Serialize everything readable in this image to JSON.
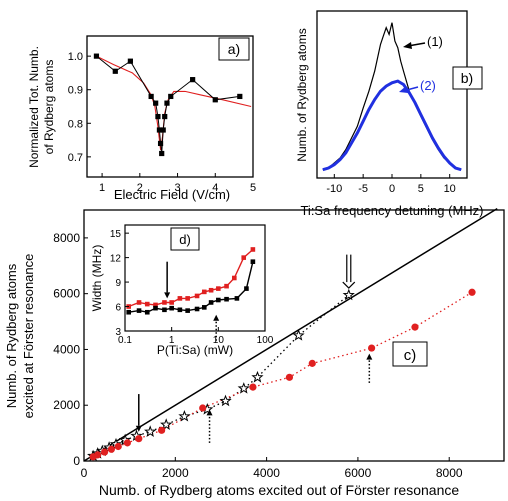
{
  "figure": {
    "panel_letters": {
      "a": "a)",
      "b": "b)",
      "c": "c)",
      "d": "d)"
    }
  },
  "chart_data": [
    {
      "panel": "a)",
      "type": "scatter",
      "xlabel": "Electric Field (V/cm)",
      "ylabel_lines": [
        "Normalized Tot. Numb.",
        "of Rydberg atoms"
      ],
      "xlim": [
        0.6,
        5.0
      ],
      "ylim": [
        0.64,
        1.06
      ],
      "xticks": [
        1,
        2,
        3,
        4,
        5
      ],
      "yticks": [
        0.7,
        0.8,
        0.9,
        1.0
      ],
      "ytick_labels": [
        "0.7",
        "0.8",
        "0.9",
        "1.0"
      ],
      "series": [
        {
          "kind": "points-connected",
          "color": "#000000",
          "x": [
            0.85,
            1.35,
            1.75,
            2.3,
            2.42,
            2.48,
            2.52,
            2.55,
            2.58,
            2.62,
            2.66,
            2.72,
            2.82,
            3.4,
            4.0,
            4.65
          ],
          "y": [
            1.0,
            0.955,
            0.985,
            0.88,
            0.86,
            0.82,
            0.78,
            0.74,
            0.71,
            0.78,
            0.82,
            0.86,
            0.88,
            0.93,
            0.87,
            0.88
          ]
        },
        {
          "kind": "fit-line",
          "color": "#e02020",
          "x": [
            0.85,
            1.3,
            1.8,
            2.1,
            2.3,
            2.4,
            2.48,
            2.55,
            2.6,
            2.66,
            2.75,
            2.9,
            3.2,
            3.6,
            4.2,
            4.95
          ],
          "y": [
            1.0,
            0.975,
            0.95,
            0.92,
            0.885,
            0.85,
            0.79,
            0.72,
            0.76,
            0.83,
            0.87,
            0.895,
            0.895,
            0.885,
            0.87,
            0.85
          ]
        }
      ]
    },
    {
      "panel": "b)",
      "type": "line",
      "xlabel": "Ti:Sa frequency detuning (MHz)",
      "ylabel": "Numb. of Rydberg atoms",
      "xlim": [
        -13,
        13
      ],
      "ylim": [
        0,
        1.0
      ],
      "xticks": [
        -10,
        -5,
        0,
        5,
        10
      ],
      "annotations": [
        "(1)",
        "(2)"
      ],
      "series": [
        {
          "name": "(1)",
          "color": "#000000",
          "x": [
            -12,
            -11,
            -10,
            -9,
            -8,
            -7,
            -6,
            -5,
            -4,
            -3,
            -2,
            -1.5,
            -1,
            -0.5,
            0,
            0.5,
            1,
            1.5,
            2,
            3,
            4,
            5,
            6,
            7,
            8,
            9,
            10,
            11,
            12
          ],
          "y": [
            0.05,
            0.06,
            0.09,
            0.12,
            0.17,
            0.24,
            0.31,
            0.42,
            0.52,
            0.64,
            0.8,
            0.85,
            0.9,
            0.86,
            0.93,
            0.82,
            0.78,
            0.7,
            0.64,
            0.52,
            0.44,
            0.37,
            0.3,
            0.23,
            0.17,
            0.12,
            0.09,
            0.06,
            0.05
          ]
        },
        {
          "name": "(2)",
          "color": "#2030e0",
          "x": [
            -12,
            -11,
            -10,
            -9,
            -8,
            -7,
            -6,
            -5,
            -4,
            -3,
            -2,
            -1,
            0,
            1,
            2,
            3,
            4,
            5,
            6,
            7,
            8,
            9,
            10,
            11,
            12
          ],
          "y": [
            0.05,
            0.06,
            0.08,
            0.11,
            0.15,
            0.21,
            0.27,
            0.34,
            0.41,
            0.47,
            0.52,
            0.55,
            0.57,
            0.58,
            0.56,
            0.51,
            0.45,
            0.38,
            0.31,
            0.24,
            0.18,
            0.13,
            0.09,
            0.06,
            0.05
          ]
        }
      ]
    },
    {
      "panel": "c)",
      "type": "scatter",
      "xlabel": "Numb. of Rydberg atoms excited out of Förster resonance",
      "ylabel_lines": [
        "Numb. of Rydberg atoms",
        "excited at  Förster resonance"
      ],
      "xlim": [
        0,
        9200
      ],
      "ylim": [
        0,
        9000
      ],
      "xticks": [
        0,
        2000,
        4000,
        6000,
        8000
      ],
      "yticks": [
        0,
        2000,
        4000,
        6000,
        8000
      ],
      "series": [
        {
          "kind": "line",
          "color": "#000000",
          "x": [
            0,
            9050
          ],
          "y": [
            0,
            9050
          ]
        },
        {
          "kind": "stars",
          "color": "#000000",
          "x": [
            200,
            300,
            400,
            550,
            700,
            900,
            1150,
            1450,
            1800,
            2200,
            2700,
            3100,
            3500,
            3800,
            4700,
            5800
          ],
          "y": [
            180,
            270,
            360,
            480,
            600,
            750,
            900,
            1050,
            1300,
            1600,
            1850,
            2150,
            2600,
            3000,
            4500,
            5950
          ]
        },
        {
          "kind": "dots",
          "color": "#e02020",
          "x": [
            200,
            300,
            450,
            600,
            750,
            950,
            1200,
            1700,
            2600,
            3700,
            4500,
            5000,
            6300,
            7250,
            8500
          ],
          "y": [
            150,
            220,
            320,
            420,
            520,
            650,
            800,
            1100,
            1900,
            2650,
            3000,
            3500,
            4050,
            4800,
            6050
          ]
        }
      ],
      "arrows": [
        {
          "style": "solid",
          "x": 1200,
          "y_from": 2400,
          "y_to": 1050
        },
        {
          "style": "dotted",
          "x": 2750,
          "y_from": 650,
          "y_to": 1850
        },
        {
          "style": "dotted",
          "x": 6250,
          "y_from": 2800,
          "y_to": 3850
        },
        {
          "style": "double",
          "x": 5800,
          "y_from": 7400,
          "y_to": 6200
        }
      ]
    },
    {
      "panel": "d)",
      "type": "line",
      "xlabel": "P(Ti:Sa) (mW)",
      "ylabel": "Width (MHz)",
      "xscale": "log",
      "xlim": [
        0.1,
        100
      ],
      "ylim": [
        3,
        16
      ],
      "xtick_values": [
        0.1,
        1,
        10,
        100
      ],
      "xtick_labels": [
        "0.1",
        "1",
        "10",
        "100"
      ],
      "yticks": [
        3,
        6,
        9,
        12,
        15
      ],
      "ytick_labels": [
        "3",
        "6",
        "9",
        "12",
        "15"
      ],
      "series": [
        {
          "kind": "squares",
          "color": "#e02020",
          "x": [
            0.12,
            0.2,
            0.3,
            0.45,
            0.7,
            1.0,
            1.5,
            2.2,
            3.5,
            5,
            7,
            10,
            15,
            22,
            35,
            55
          ],
          "y": [
            6.0,
            6.5,
            6.3,
            6.2,
            6.5,
            6.5,
            7.0,
            7.0,
            7.3,
            7.8,
            8.0,
            8.2,
            8.5,
            9.5,
            12.0,
            13.0
          ]
        },
        {
          "kind": "squares",
          "color": "#000000",
          "x": [
            0.12,
            0.2,
            0.3,
            0.45,
            0.7,
            1.0,
            1.5,
            2.2,
            3.5,
            5,
            7,
            10,
            15,
            25,
            40,
            55
          ],
          "y": [
            5.3,
            5.5,
            5.3,
            5.8,
            5.6,
            5.8,
            5.6,
            5.5,
            5.7,
            5.9,
            6.5,
            6.8,
            6.9,
            7.0,
            8.2,
            11.5
          ]
        }
      ],
      "arrows": [
        {
          "style": "solid",
          "x": 0.8,
          "y_from": 11.5,
          "y_to": 7.0
        },
        {
          "style": "dotted",
          "x": 9,
          "y_from": 1.8,
          "y_to": 5.0
        }
      ]
    }
  ]
}
